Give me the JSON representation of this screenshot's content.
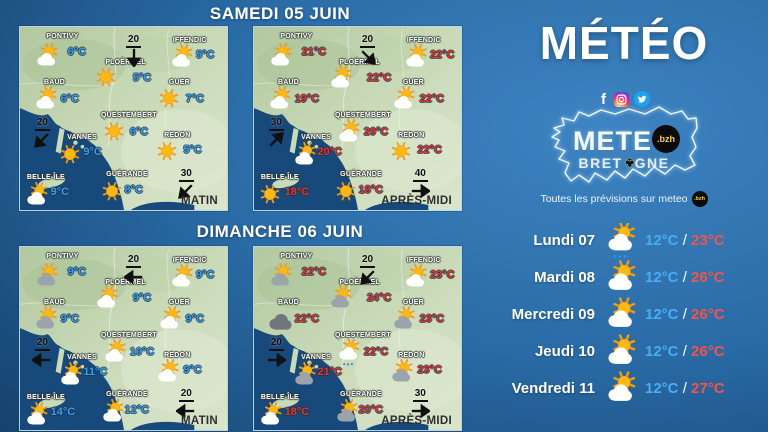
{
  "brand": {
    "title": "MÉTÉO",
    "logo": {
      "word": "METE",
      "badge": ".bzh",
      "region": [
        "BRET",
        "GNE"
      ]
    },
    "tagline": "Toutes les prévisions sur meteo",
    "tagline_badge": ".bzh",
    "social": [
      "facebook",
      "instagram",
      "twitter"
    ]
  },
  "days": [
    {
      "header": "SAMEDI 05 JUIN"
    },
    {
      "header": "DIMANCHE 06 JUIN"
    }
  ],
  "panels": [
    {
      "day": 0,
      "period": "MATIN",
      "temp_style": "cold",
      "stations": [
        {
          "town": "PONTIVY",
          "icon": "sun-cloud",
          "temp": "6°C"
        },
        {
          "town": "PLOËRMEL",
          "icon": "sun",
          "temp": "5°C"
        },
        {
          "town": "IFFENDIC",
          "icon": "sun-cloud",
          "temp": "5°C"
        },
        {
          "town": "BAUD",
          "icon": "sun-cloud",
          "temp": "6°C"
        },
        {
          "town": "GUER",
          "icon": "sun",
          "temp": "7°C"
        },
        {
          "town": "QUESTEMBERT",
          "icon": "sun",
          "temp": "6°C"
        },
        {
          "town": "VANNES",
          "icon": "sun",
          "temp": "9°C"
        },
        {
          "town": "REDON",
          "icon": "sun",
          "temp": "5°C"
        },
        {
          "town": "BELLE-ÎLE",
          "icon": "sun-cloud",
          "temp": "9°C"
        },
        {
          "town": "GUÉRANDE",
          "icon": "sun",
          "temp": "8°C"
        }
      ],
      "winds": [
        {
          "speed": "20",
          "dir": "down"
        },
        {
          "speed": "20",
          "dir": "down-left"
        },
        {
          "speed": "30",
          "dir": "down-left"
        }
      ]
    },
    {
      "day": 0,
      "period": "APRÈS-MIDI",
      "temp_style": "warm",
      "stations": [
        {
          "town": "PONTIVY",
          "icon": "sun-cloud",
          "temp": "21°C"
        },
        {
          "town": "PLOËRMEL",
          "icon": "sun-cloud",
          "temp": "22°C"
        },
        {
          "town": "IFFENDIC",
          "icon": "sun-cloud",
          "temp": "22°C"
        },
        {
          "town": "BAUD",
          "icon": "sun-cloud",
          "temp": "19°C"
        },
        {
          "town": "GUER",
          "icon": "sun-cloud",
          "temp": "22°C"
        },
        {
          "town": "QUESTEMBERT",
          "icon": "sun-cloud",
          "temp": "20°C"
        },
        {
          "town": "VANNES",
          "icon": "sun-cloud",
          "temp": "20°C"
        },
        {
          "town": "REDON",
          "icon": "sun",
          "temp": "22°C"
        },
        {
          "town": "BELLE-ÎLE",
          "icon": "sun",
          "temp": "18°C"
        },
        {
          "town": "GUÉRANDE",
          "icon": "sun",
          "temp": "18°C"
        }
      ],
      "winds": [
        {
          "speed": "20",
          "dir": "down-right"
        },
        {
          "speed": "30",
          "dir": "up-right"
        },
        {
          "speed": "40",
          "dir": "right"
        }
      ]
    },
    {
      "day": 1,
      "period": "MATIN",
      "temp_style": "cold",
      "stations": [
        {
          "town": "PONTIVY",
          "icon": "sun-gray-cloud",
          "temp": "9°C"
        },
        {
          "town": "PLOËRMEL",
          "icon": "sun-cloud",
          "temp": "9°C"
        },
        {
          "town": "IFFENDIC",
          "icon": "sun-cloud",
          "temp": "9°C"
        },
        {
          "town": "BAUD",
          "icon": "sun-gray-cloud",
          "temp": "9°C"
        },
        {
          "town": "GUER",
          "icon": "sun-cloud",
          "temp": "9°C"
        },
        {
          "town": "QUESTEMBERT",
          "icon": "sun-cloud",
          "temp": "10°C"
        },
        {
          "town": "VANNES",
          "icon": "sun-cloud",
          "temp": "11°C"
        },
        {
          "town": "REDON",
          "icon": "sun-cloud",
          "temp": "9°C"
        },
        {
          "town": "BELLE-ÎLE",
          "icon": "sun-cloud",
          "temp": "14°C"
        },
        {
          "town": "GUÉRANDE",
          "icon": "sun-cloud",
          "temp": "12°C"
        }
      ],
      "winds": [
        {
          "speed": "20",
          "dir": "left"
        },
        {
          "speed": "20",
          "dir": "left"
        },
        {
          "speed": "20",
          "dir": "left"
        }
      ]
    },
    {
      "day": 1,
      "period": "APRÈS-MIDI",
      "temp_style": "warm",
      "stations": [
        {
          "town": "PONTIVY",
          "icon": "sun-gray-cloud",
          "temp": "22°C"
        },
        {
          "town": "PLOËRMEL",
          "icon": "sun-gray-cloud",
          "temp": "24°C"
        },
        {
          "town": "IFFENDIC",
          "icon": "sun-cloud",
          "temp": "23°C"
        },
        {
          "town": "BAUD",
          "icon": "dark-cloud",
          "temp": "22°C"
        },
        {
          "town": "GUER",
          "icon": "sun-gray-cloud",
          "temp": "23°C"
        },
        {
          "town": "QUESTEMBERT",
          "icon": "sun-cloud-rain",
          "temp": "22°C"
        },
        {
          "town": "VANNES",
          "icon": "sun-gray-cloud",
          "temp": "21°C"
        },
        {
          "town": "REDON",
          "icon": "sun-gray-cloud",
          "temp": "23°C"
        },
        {
          "town": "BELLE-ÎLE",
          "icon": "sun-cloud",
          "temp": "18°C"
        },
        {
          "town": "GUÉRANDE",
          "icon": "sun-gray-cloud",
          "temp": "20°C"
        }
      ],
      "winds": [
        {
          "speed": "20",
          "dir": "down-left"
        },
        {
          "speed": "20",
          "dir": "right"
        },
        {
          "speed": "30",
          "dir": "right"
        }
      ]
    }
  ],
  "week_forecast": [
    {
      "day": "Lundi 07",
      "icon": "sun-cloud-rain",
      "min": "12°C",
      "max": "23°C"
    },
    {
      "day": "Mardi 08",
      "icon": "sun-cloud",
      "min": "12°C",
      "max": "26°C"
    },
    {
      "day": "Mercredi 09",
      "icon": "sun-cloud",
      "min": "12°C",
      "max": "26°C"
    },
    {
      "day": "Jeudi 10",
      "icon": "sun-cloud",
      "min": "12°C",
      "max": "26°C"
    },
    {
      "day": "Vendredi 11",
      "icon": "sun-cloud",
      "min": "12°C",
      "max": "27°C"
    }
  ],
  "colors": {
    "temp_cold": "#38a1f0",
    "temp_warm": "#ea352b",
    "sea": "#17497A",
    "land": "#C9DAB8",
    "sun": "#FDB813",
    "twitter_blue": "#1DA1F2",
    "badge_black": "#0b0b0b"
  }
}
